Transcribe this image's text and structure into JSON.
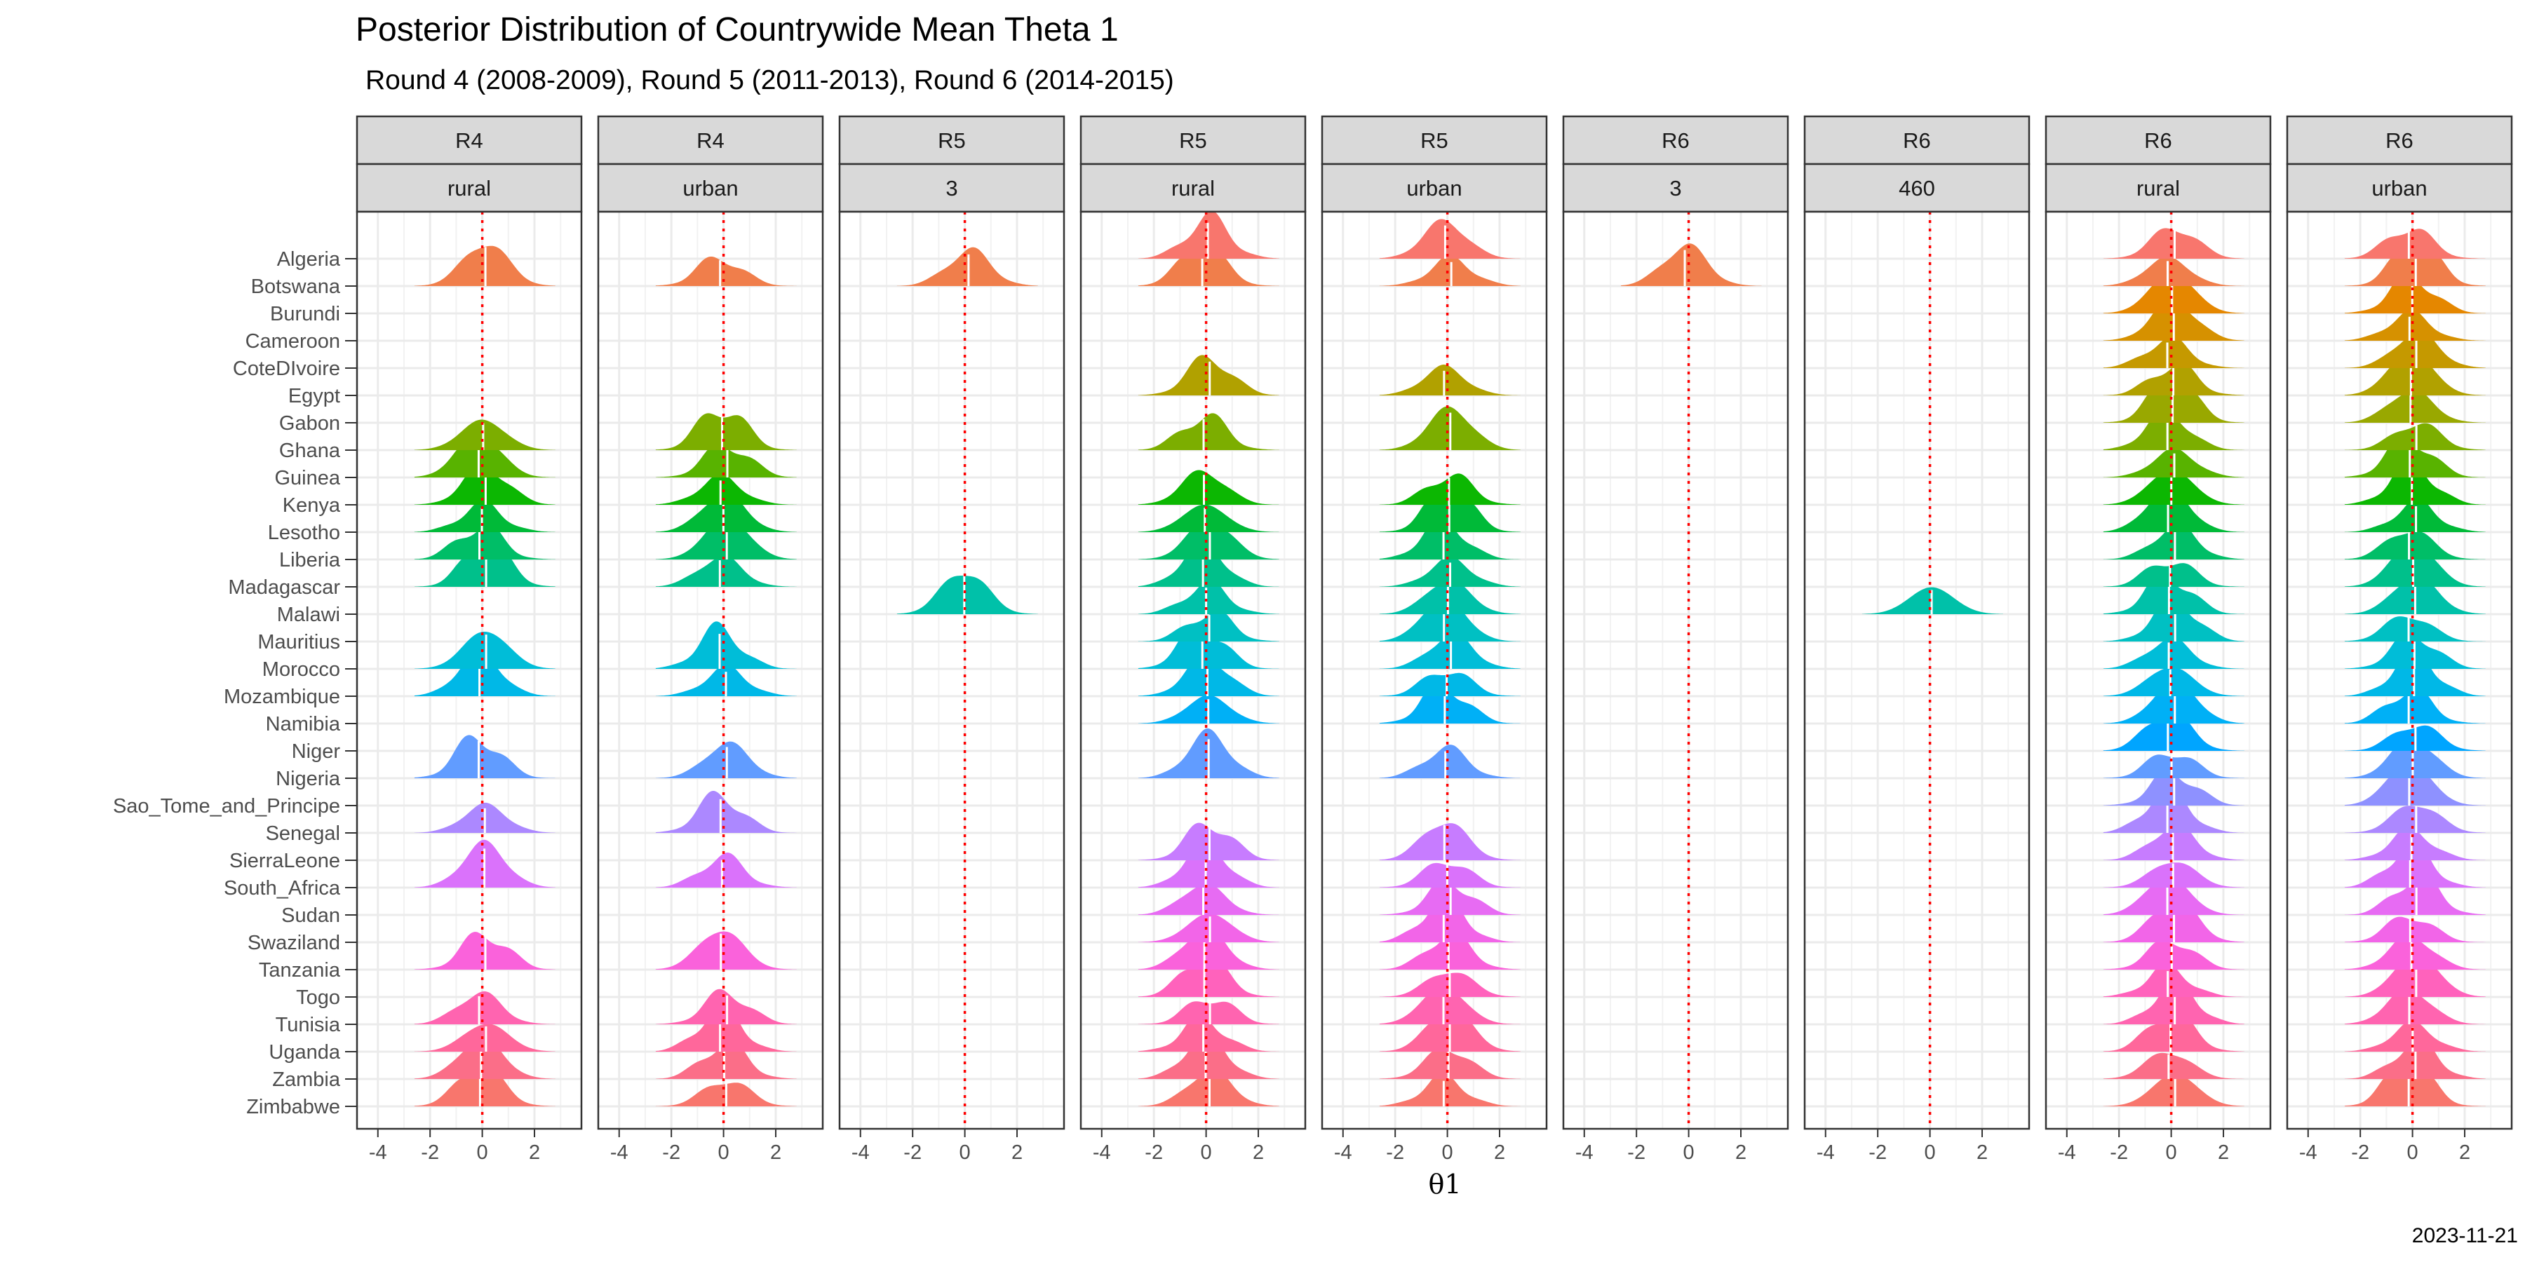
{
  "chart_data": {
    "type": "ridgeline",
    "title": "Posterior Distribution of Countrywide Mean Theta 1",
    "subtitle": "Round 4 (2008-2009), Round 5 (2011-2013), Round 6 (2014-2015)",
    "xlabel": "θ1",
    "caption": "2023-11-21",
    "xlim": [
      -4.8,
      3.8
    ],
    "x_ticks": [
      -4,
      -2,
      0,
      2
    ],
    "x_tick_labels": [
      "-4",
      "-2",
      "0",
      "2"
    ],
    "reference_line": {
      "x": 0,
      "color": "#FF0000",
      "style": "dotted"
    },
    "grid": true,
    "countries": [
      "Algeria",
      "Botswana",
      "Burundi",
      "Cameroon",
      "CoteDIvoire",
      "Egypt",
      "Gabon",
      "Ghana",
      "Guinea",
      "Kenya",
      "Lesotho",
      "Liberia",
      "Madagascar",
      "Malawi",
      "Mauritius",
      "Morocco",
      "Mozambique",
      "Namibia",
      "Niger",
      "Nigeria",
      "Sao_Tome_and_Principe",
      "Senegal",
      "SierraLeone",
      "South_Africa",
      "Sudan",
      "Swaziland",
      "Tanzania",
      "Togo",
      "Tunisia",
      "Uganda",
      "Zambia",
      "Zimbabwe"
    ],
    "colors": [
      "#F8766D",
      "#F07E4B",
      "#E58700",
      "#D69100",
      "#C59900",
      "#B1A100",
      "#99A800",
      "#7CAE00",
      "#58B300",
      "#0CB702",
      "#00BA38",
      "#00BE67",
      "#00C08B",
      "#00C1A9",
      "#00C0C3",
      "#00BDD8",
      "#00B8E7",
      "#00B0F6",
      "#00A5FF",
      "#619CFF",
      "#8E91FF",
      "#AC88FF",
      "#C77CFF",
      "#DA72FB",
      "#E76BF3",
      "#F265E8",
      "#FA62DB",
      "#FF62BC",
      "#FF64B0",
      "#FF679B",
      "#FB6E88",
      "#F8766D"
    ],
    "panels": [
      {
        "strip": [
          "R4",
          "rural"
        ],
        "countries": [
          "Botswana",
          "Ghana",
          "Guinea",
          "Kenya",
          "Lesotho",
          "Liberia",
          "Madagascar",
          "Morocco",
          "Mozambique",
          "Nigeria",
          "Senegal",
          "South_Africa",
          "Tanzania",
          "Tunisia",
          "Uganda",
          "Zambia",
          "Zimbabwe"
        ]
      },
      {
        "strip": [
          "R4",
          "urban"
        ],
        "countries": [
          "Botswana",
          "Ghana",
          "Guinea",
          "Kenya",
          "Lesotho",
          "Liberia",
          "Madagascar",
          "Morocco",
          "Mozambique",
          "Nigeria",
          "Senegal",
          "South_Africa",
          "Tanzania",
          "Tunisia",
          "Uganda",
          "Zambia",
          "Zimbabwe"
        ]
      },
      {
        "strip": [
          "R5",
          "3"
        ],
        "countries": [
          "Botswana",
          "Malawi"
        ]
      },
      {
        "strip": [
          "R5",
          "rural"
        ],
        "countries": [
          "Algeria",
          "Botswana",
          "Egypt",
          "Ghana",
          "Kenya",
          "Lesotho",
          "Liberia",
          "Madagascar",
          "Malawi",
          "Mauritius",
          "Morocco",
          "Mozambique",
          "Namibia",
          "Nigeria",
          "SierraLeone",
          "South_Africa",
          "Sudan",
          "Swaziland",
          "Tanzania",
          "Togo",
          "Tunisia",
          "Uganda",
          "Zambia",
          "Zimbabwe"
        ]
      },
      {
        "strip": [
          "R5",
          "urban"
        ],
        "countries": [
          "Algeria",
          "Botswana",
          "Egypt",
          "Ghana",
          "Kenya",
          "Lesotho",
          "Liberia",
          "Madagascar",
          "Malawi",
          "Mauritius",
          "Morocco",
          "Mozambique",
          "Namibia",
          "Nigeria",
          "SierraLeone",
          "South_Africa",
          "Sudan",
          "Swaziland",
          "Tanzania",
          "Togo",
          "Tunisia",
          "Uganda",
          "Zambia",
          "Zimbabwe"
        ]
      },
      {
        "strip": [
          "R6",
          "3"
        ],
        "countries": [
          "Botswana"
        ]
      },
      {
        "strip": [
          "R6",
          "460"
        ],
        "countries": [
          "Malawi"
        ]
      },
      {
        "strip": [
          "R6",
          "rural"
        ],
        "countries": [
          "Algeria",
          "Botswana",
          "Burundi",
          "Cameroon",
          "CoteDIvoire",
          "Egypt",
          "Gabon",
          "Ghana",
          "Guinea",
          "Kenya",
          "Lesotho",
          "Liberia",
          "Madagascar",
          "Malawi",
          "Mauritius",
          "Morocco",
          "Mozambique",
          "Namibia",
          "Niger",
          "Nigeria",
          "Sao_Tome_and_Principe",
          "Senegal",
          "SierraLeone",
          "South_Africa",
          "Sudan",
          "Swaziland",
          "Tanzania",
          "Togo",
          "Tunisia",
          "Uganda",
          "Zambia",
          "Zimbabwe"
        ]
      },
      {
        "strip": [
          "R6",
          "urban"
        ],
        "countries": [
          "Algeria",
          "Botswana",
          "Burundi",
          "Cameroon",
          "CoteDIvoire",
          "Egypt",
          "Gabon",
          "Ghana",
          "Guinea",
          "Kenya",
          "Lesotho",
          "Liberia",
          "Madagascar",
          "Malawi",
          "Mauritius",
          "Morocco",
          "Mozambique",
          "Namibia",
          "Niger",
          "Nigeria",
          "Sao_Tome_and_Principe",
          "Senegal",
          "SierraLeone",
          "South_Africa",
          "Sudan",
          "Swaziland",
          "Tanzania",
          "Togo",
          "Tunisia",
          "Uganda",
          "Zambia",
          "Zimbabwe"
        ]
      }
    ]
  }
}
